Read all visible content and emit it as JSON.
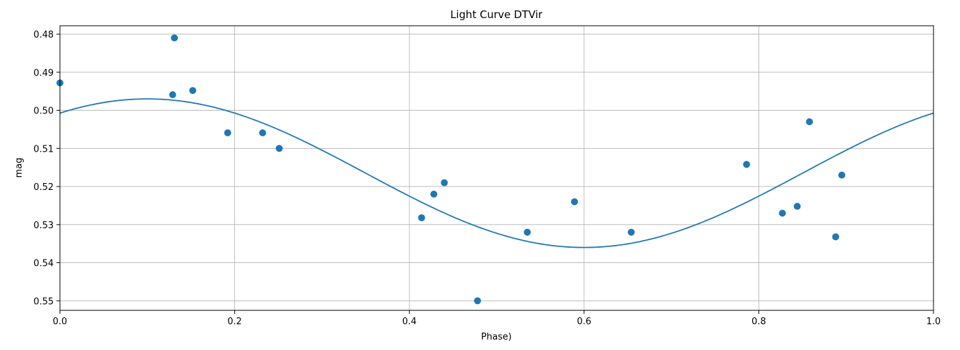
{
  "chart_data": {
    "type": "scatter",
    "title": "Light Curve DTVir",
    "xlabel": "Phase)",
    "ylabel": "mag",
    "xlim": [
      0.0,
      1.0
    ],
    "ylim": [
      0.5525,
      0.4778
    ],
    "y_inverted": true,
    "grid": true,
    "x_ticks": [
      0.0,
      0.2,
      0.4,
      0.6,
      0.8,
      1.0
    ],
    "x_tick_labels": [
      "0.0",
      "0.2",
      "0.4",
      "0.6",
      "0.8",
      "1.0"
    ],
    "y_ticks": [
      0.48,
      0.49,
      0.5,
      0.51,
      0.52,
      0.53,
      0.54,
      0.55
    ],
    "y_tick_labels": [
      "0.48",
      "0.49",
      "0.50",
      "0.51",
      "0.52",
      "0.53",
      "0.54",
      "0.55"
    ],
    "series": [
      {
        "kind": "scatter",
        "color": "#1f77b4",
        "x": [
          0.0,
          0.129,
          0.131,
          0.152,
          0.192,
          0.232,
          0.251,
          0.414,
          0.428,
          0.44,
          0.478,
          0.535,
          0.589,
          0.654,
          0.786,
          0.827,
          0.844,
          0.858,
          0.888,
          0.895
        ],
        "y": [
          0.4928,
          0.4959,
          0.481,
          0.4948,
          0.5059,
          0.5059,
          0.51,
          0.5282,
          0.522,
          0.519,
          0.55,
          0.532,
          0.524,
          0.532,
          0.5142,
          0.527,
          0.5252,
          0.503,
          0.5332,
          0.517
        ]
      },
      {
        "kind": "line",
        "color": "#1f77b4",
        "model": "sinusoid",
        "mean": 0.5165,
        "amplitude": 0.0195,
        "min_phase": 0.1
      }
    ]
  }
}
